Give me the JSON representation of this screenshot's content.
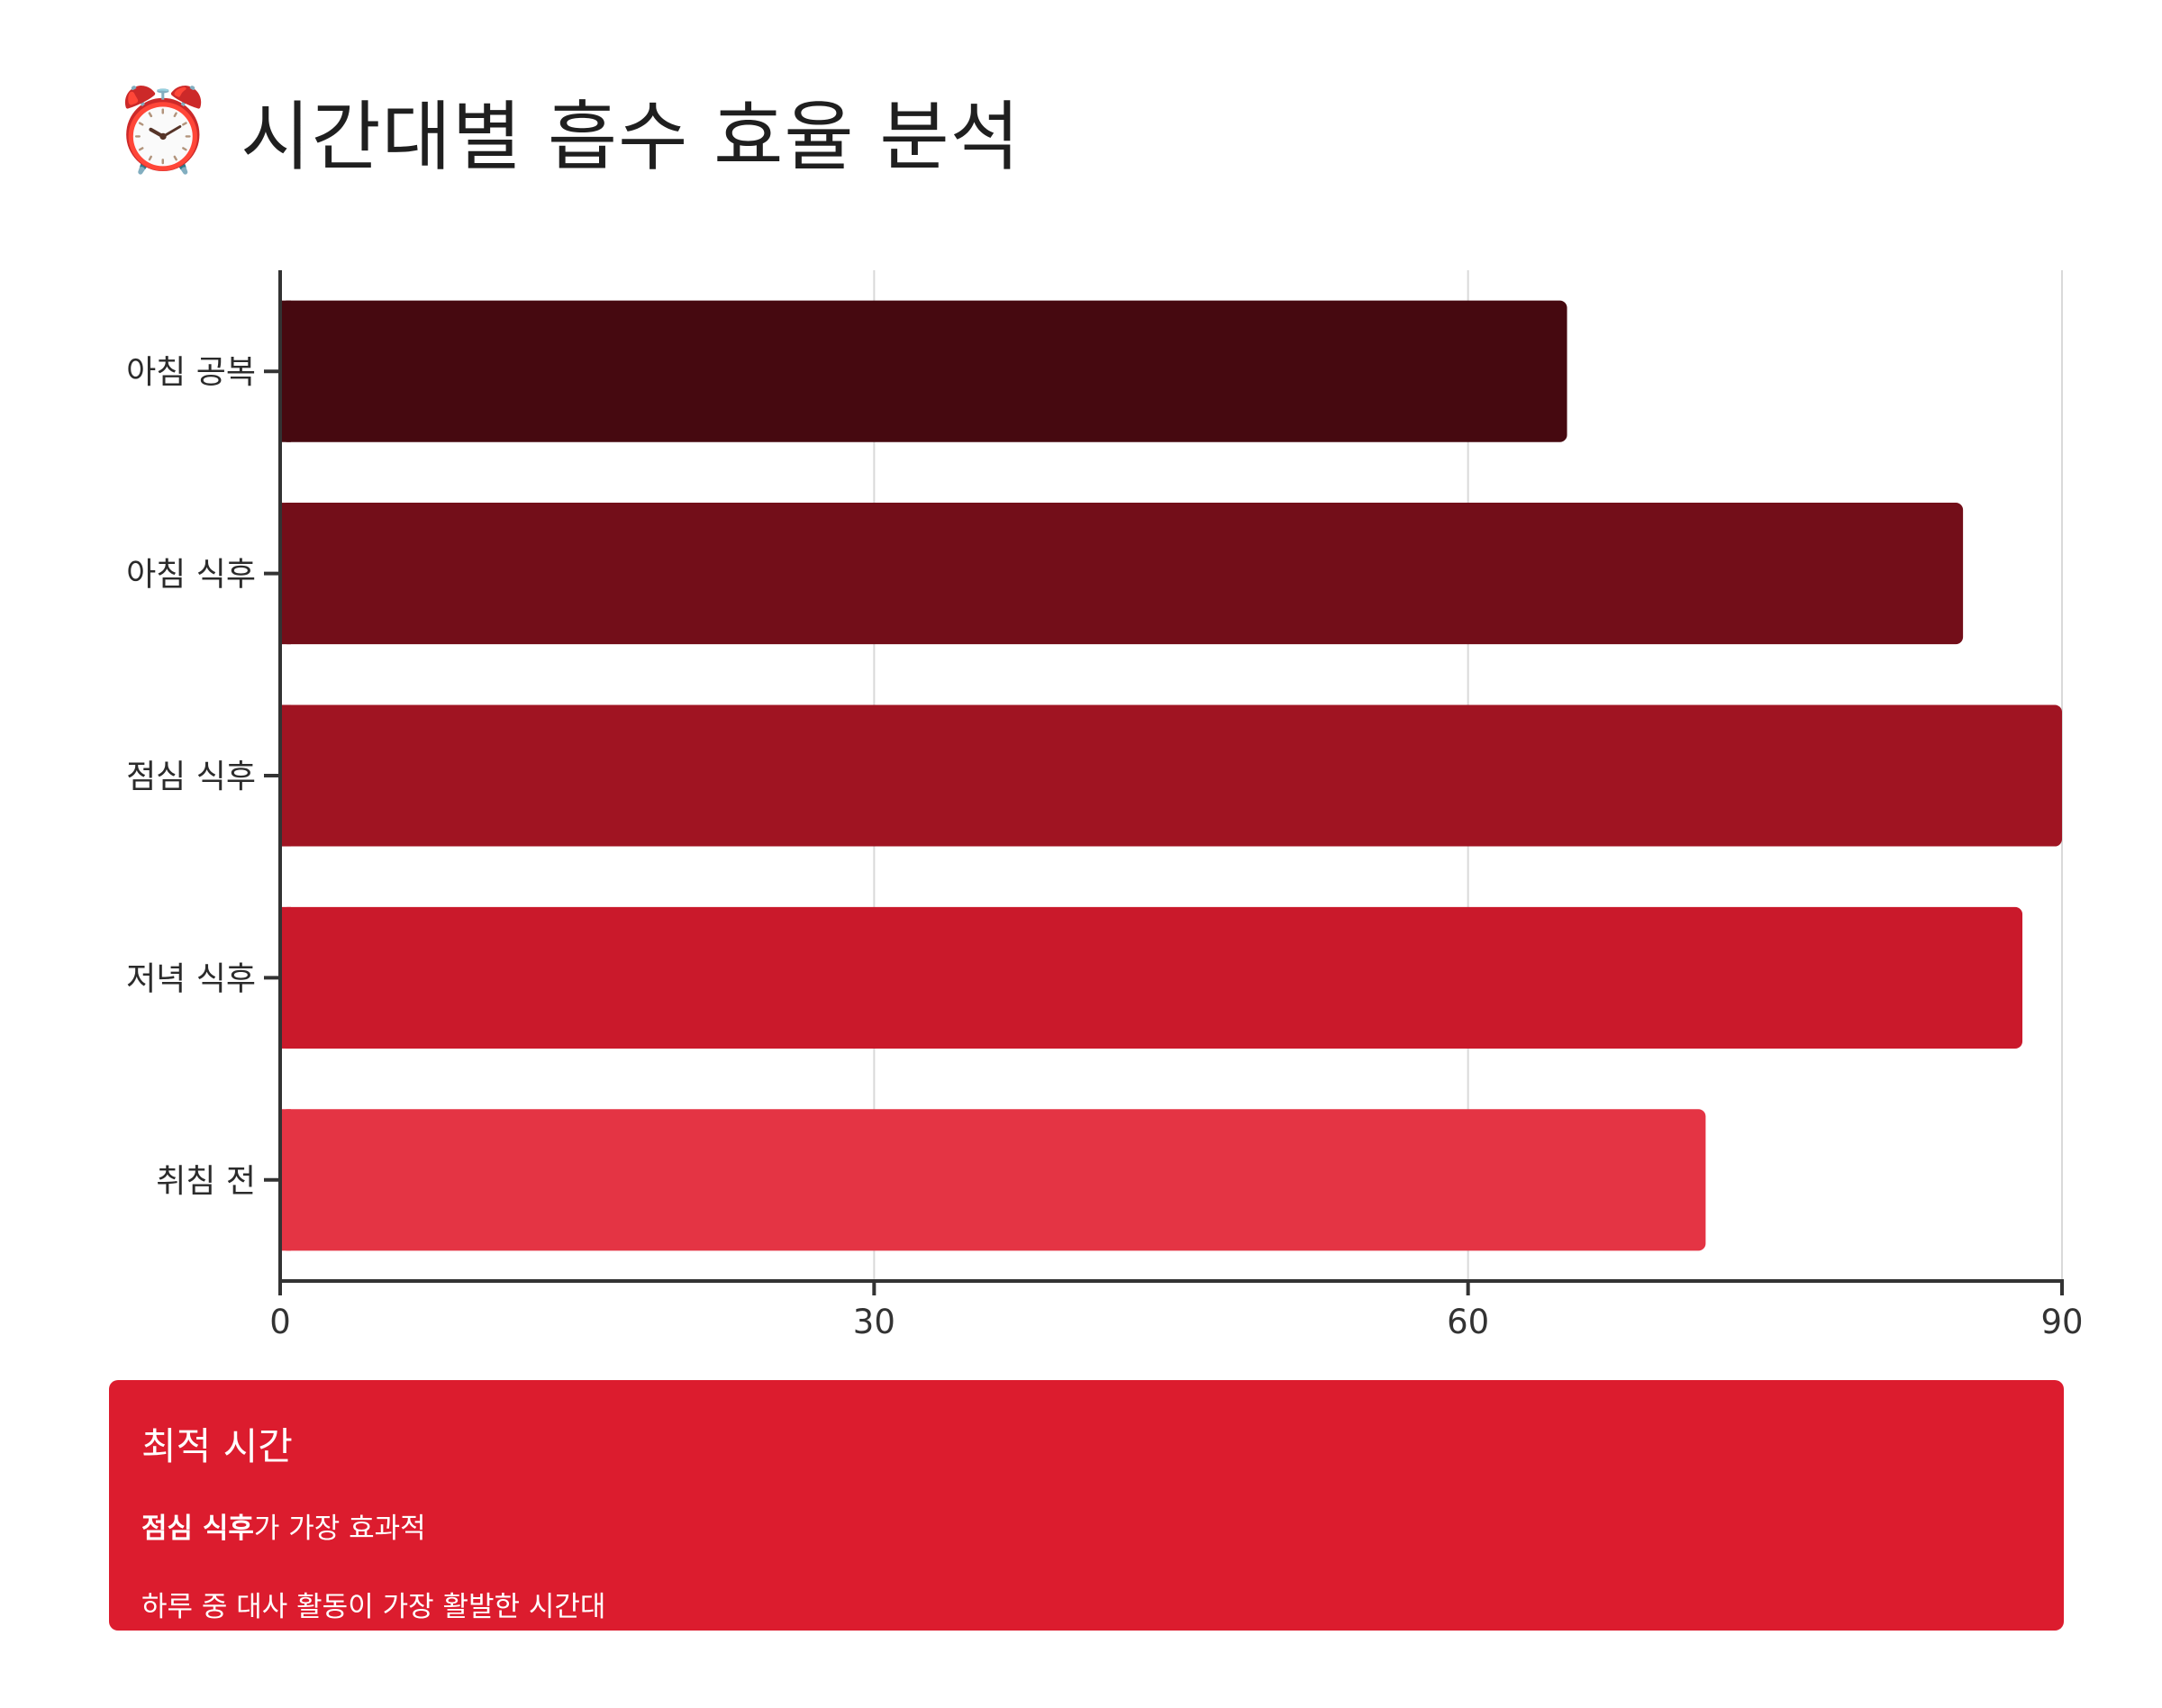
{
  "title": {
    "emoji": "⏰",
    "text": "시간대별 흡수 효율 분석"
  },
  "chart_data": {
    "type": "bar",
    "orientation": "horizontal",
    "categories": [
      "아침 공복",
      "아침 식후",
      "점심 식후",
      "저녁 식후",
      "취침 전"
    ],
    "values": [
      65,
      85,
      90,
      88,
      72
    ],
    "colors": [
      "#460910",
      "#730e19",
      "#a01422",
      "#ca192b",
      "#e43444"
    ],
    "xlim": [
      0,
      90
    ],
    "xticks": [
      0,
      30,
      60,
      90
    ],
    "grid": true,
    "xlabel": "",
    "ylabel": ""
  },
  "card": {
    "title": "최적 시간",
    "highlight": "점심 식후",
    "highlight_suffix": "가 가장 효과적",
    "description": "하루 중 대사 활동이 가장 활발한 시간대"
  }
}
